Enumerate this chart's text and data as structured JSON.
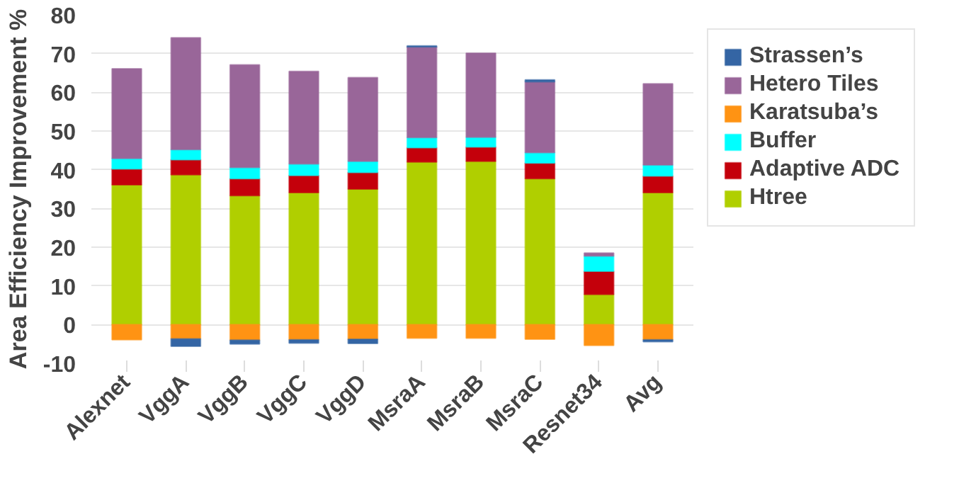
{
  "chart_data": {
    "type": "bar",
    "stacked": true,
    "ylabel": "Area Efficiency Improvement %",
    "categories": [
      "Alexnet",
      "VggA",
      "VggB",
      "VggC",
      "VggD",
      "MsraA",
      "MsraB",
      "MsraC",
      "Resnet34",
      "Avg"
    ],
    "series": [
      {
        "name": "Htree",
        "color": "#b0cf00",
        "values": [
          36.1,
          38.7,
          33.3,
          34.1,
          35.0,
          42.0,
          42.2,
          37.7,
          7.8,
          34.1
        ]
      },
      {
        "name": "Adaptive ADC",
        "color": "#c4000b",
        "values": [
          4.1,
          3.9,
          4.4,
          4.4,
          4.3,
          3.7,
          3.7,
          4.0,
          6.0,
          4.3
        ]
      },
      {
        "name": "Buffer",
        "color": "#00ffff",
        "values": [
          2.7,
          2.6,
          2.9,
          3.0,
          2.9,
          2.6,
          2.5,
          2.7,
          3.9,
          2.8
        ]
      },
      {
        "name": "Karatsuba’s",
        "color": "#ff9313",
        "values": [
          -3.9,
          -3.7,
          -4.0,
          -3.9,
          -3.8,
          -3.5,
          -3.5,
          -3.8,
          -5.4,
          -3.9
        ]
      },
      {
        "name": "Hetero Tiles",
        "color": "#996699",
        "values": [
          23.2,
          28.9,
          26.5,
          23.9,
          21.6,
          23.4,
          21.7,
          18.3,
          0.8,
          21.0
        ]
      },
      {
        "name": "Strassen’s",
        "color": "#3465a4",
        "values": [
          null,
          -1.9,
          -1.0,
          -0.9,
          -1.1,
          0.3,
          null,
          0.5,
          null,
          -0.5
        ]
      }
    ],
    "ylim": [
      -10,
      80
    ],
    "yticks": [
      -10,
      0,
      10,
      20,
      30,
      40,
      50,
      60,
      70,
      80
    ],
    "grid": "y",
    "legend": "right"
  }
}
